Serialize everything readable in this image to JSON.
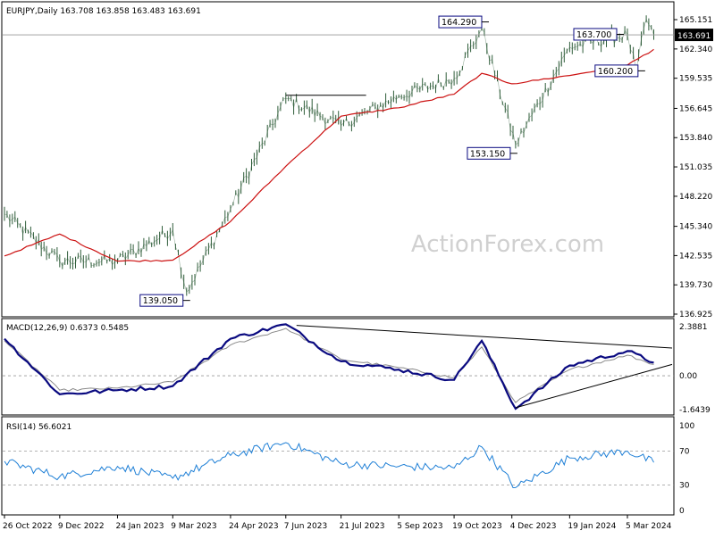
{
  "watermark": "ActionForex.com",
  "colors": {
    "price": "#2f5d3a",
    "sma": "#cc1111",
    "macd": "#0a0a80",
    "signal": "#8a8a8a",
    "rsi": "#1e7fd6",
    "box_border": "#0a0a80",
    "axis": "#000000",
    "last_price_tag": "#000000"
  },
  "chart_data": [
    {
      "type": "line",
      "title": "EURJPY,Daily 163.708 163.858 163.483 163.691",
      "last_price": 163.691,
      "last_price_label": "163.691",
      "ylim": [
        136.925,
        165.151
      ],
      "yticks": [
        "165.151",
        "162.340",
        "159.535",
        "156.645",
        "153.840",
        "151.035",
        "148.220",
        "145.340",
        "142.535",
        "139.730",
        "136.925"
      ],
      "xticks": [
        "26 Oct 2022",
        "9 Dec 2022",
        "24 Jan 2023",
        "9 Mar 2023",
        "24 Apr 2023",
        "7 Jun 2023",
        "21 Jul 2023",
        "5 Sep 2023",
        "19 Oct 2023",
        "4 Dec 2023",
        "19 Jan 2024",
        "5 Mar 2024"
      ],
      "annotations": [
        "164.290",
        "163.700",
        "160.200",
        "153.150",
        "139.050"
      ],
      "series": [
        {
          "key": "price",
          "x": [
            "26 Oct 2022",
            "9 Dec 2022",
            "24 Jan 2023",
            "9 Mar 2023",
            "20 Mar 2023",
            "24 Apr 2023",
            "7 Jun 2023",
            "21 Jul 2023",
            "5 Sep 2023",
            "19 Oct 2023",
            "10 Nov 2023",
            "7 Dec 2023",
            "19 Jan 2024",
            "5 Mar 2024",
            "12 Mar 2024",
            "20 Mar 2024",
            "26 Mar 2024"
          ],
          "values": [
            146.5,
            142.0,
            142.0,
            145.0,
            139.05,
            147.0,
            157.6,
            155.0,
            157.8,
            159.5,
            164.29,
            153.15,
            162.5,
            163.7,
            160.2,
            165.2,
            163.691
          ]
        },
        {
          "key": "sma",
          "x": [
            "26 Oct 2022",
            "9 Dec 2022",
            "24 Jan 2023",
            "9 Mar 2023",
            "24 Apr 2023",
            "7 Jun 2023",
            "21 Jul 2023",
            "5 Sep 2023",
            "19 Oct 2023",
            "10 Nov 2023",
            "4 Dec 2023",
            "19 Jan 2024",
            "5 Mar 2024",
            "26 Mar 2024"
          ],
          "values": [
            142.5,
            144.6,
            142.0,
            142.1,
            145.8,
            151.1,
            155.9,
            156.7,
            158.0,
            160.0,
            159.0,
            159.8,
            160.8,
            162.3
          ]
        }
      ]
    },
    {
      "type": "line",
      "title": "MACD(12,26,9) 0.6373 0.5485",
      "ylim": [
        -1.6439,
        2.3881
      ],
      "yticks": [
        "2.3881",
        "0.00",
        "-1.6439"
      ],
      "series": [
        {
          "key": "macd",
          "x": [
            "26 Oct 2022",
            "9 Dec 2022",
            "24 Jan 2023",
            "9 Mar 2023",
            "24 Apr 2023",
            "7 Jun 2023",
            "21 Jul 2023",
            "5 Sep 2023",
            "19 Oct 2023",
            "10 Nov 2023",
            "7 Dec 2023",
            "19 Jan 2024",
            "5 Mar 2024",
            "26 Mar 2024"
          ],
          "values": [
            1.8,
            -0.9,
            -0.7,
            -0.5,
            1.8,
            2.5,
            0.7,
            0.3,
            -0.2,
            1.7,
            -1.6,
            0.5,
            1.2,
            0.64
          ]
        },
        {
          "key": "signal",
          "x": [
            "26 Oct 2022",
            "9 Dec 2022",
            "24 Jan 2023",
            "9 Mar 2023",
            "24 Apr 2023",
            "7 Jun 2023",
            "21 Jul 2023",
            "5 Sep 2023",
            "19 Oct 2023",
            "10 Nov 2023",
            "7 Dec 2023",
            "19 Jan 2024",
            "5 Mar 2024",
            "26 Mar 2024"
          ],
          "values": [
            1.7,
            -0.7,
            -0.6,
            -0.3,
            1.5,
            2.3,
            0.8,
            0.4,
            -0.1,
            1.4,
            -1.3,
            0.3,
            1.0,
            0.55
          ]
        }
      ]
    },
    {
      "type": "line",
      "title": "RSI(14) 56.6021",
      "ylim": [
        0,
        100
      ],
      "yticks": [
        "100",
        "70",
        "30",
        "0"
      ],
      "series": [
        {
          "key": "rsi",
          "x": [
            "26 Oct 2022",
            "9 Dec 2022",
            "24 Jan 2023",
            "9 Mar 2023",
            "24 Apr 2023",
            "7 Jun 2023",
            "21 Jul 2023",
            "5 Sep 2023",
            "19 Oct 2023",
            "10 Nov 2023",
            "7 Dec 2023",
            "19 Jan 2024",
            "5 Mar 2024",
            "26 Mar 2024"
          ],
          "values": [
            58,
            40,
            52,
            38,
            65,
            80,
            55,
            52,
            50,
            75,
            27,
            62,
            70,
            56.6
          ]
        }
      ]
    }
  ]
}
